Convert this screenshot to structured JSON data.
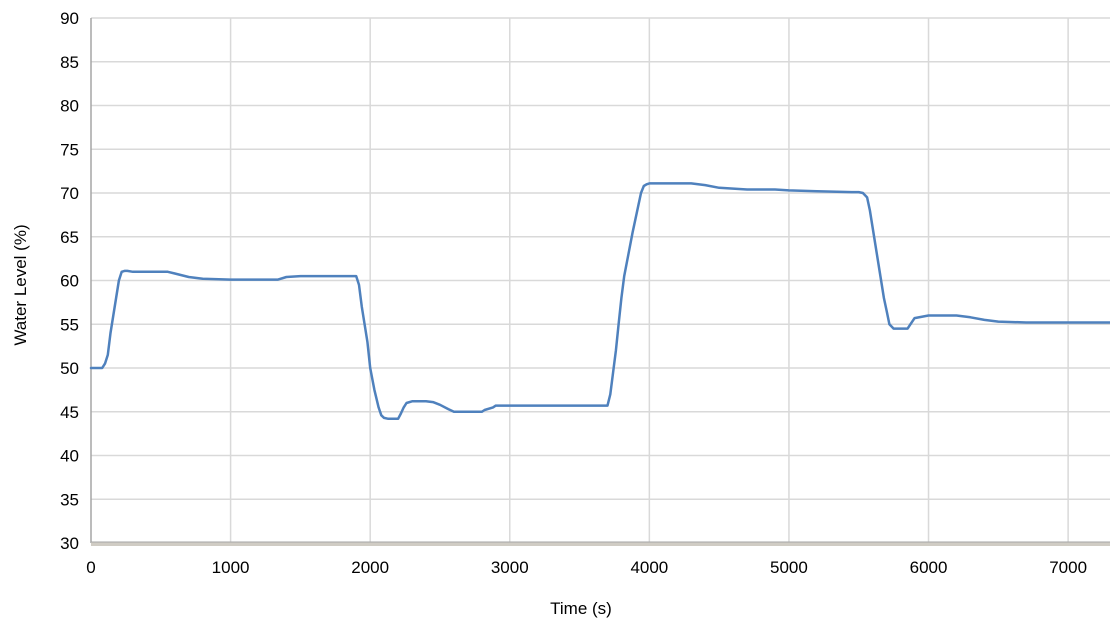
{
  "chart_data": {
    "type": "line",
    "title": "",
    "xlabel": "Time (s)",
    "ylabel": "Water Level (%)",
    "xlim": [
      0,
      7300
    ],
    "ylim": [
      30,
      90
    ],
    "x_ticks": [
      0,
      1000,
      2000,
      3000,
      4000,
      5000,
      6000,
      7000
    ],
    "y_ticks": [
      30,
      35,
      40,
      45,
      50,
      55,
      60,
      65,
      70,
      75,
      80,
      85,
      90
    ],
    "grid": true,
    "legend": "none",
    "colors": {
      "line": "#4f81bd",
      "grid": "#d9d9d9",
      "axis": "#a6a6a6"
    },
    "series": [
      {
        "x": [
          0,
          80,
          100,
          120,
          140,
          160,
          180,
          200,
          220,
          240,
          260,
          300,
          400,
          550,
          600,
          700,
          800,
          1000,
          1200,
          1340,
          1400,
          1500,
          1700,
          1900,
          1920,
          1940,
          1960,
          1980,
          2000,
          2030,
          2060,
          2080,
          2100,
          2130,
          2200,
          2220,
          2240,
          2260,
          2300,
          2400,
          2450,
          2500,
          2560,
          2600,
          2700,
          2800,
          2820,
          2880,
          2900,
          3000,
          3300,
          3600,
          3700,
          3720,
          3740,
          3760,
          3780,
          3800,
          3820,
          3850,
          3880,
          3900,
          3920,
          3940,
          3960,
          3980,
          4000,
          4020,
          4100,
          4300,
          4400,
          4500,
          4700,
          4900,
          5000,
          5200,
          5450,
          5500,
          5530,
          5560,
          5580,
          5600,
          5620,
          5640,
          5660,
          5680,
          5700,
          5720,
          5750,
          5800,
          5850,
          5870,
          5900,
          6000,
          6100,
          6200,
          6300,
          6400,
          6500,
          6700,
          7000,
          7300
        ],
        "y": [
          50,
          50,
          50.5,
          51.5,
          54,
          56,
          58,
          60,
          61,
          61.1,
          61.1,
          61,
          61,
          61,
          60.8,
          60.4,
          60.2,
          60.1,
          60.1,
          60.1,
          60.4,
          60.5,
          60.5,
          60.5,
          59.5,
          57,
          55,
          53,
          50,
          47.5,
          45.5,
          44.6,
          44.3,
          44.2,
          44.2,
          44.8,
          45.5,
          46,
          46.2,
          46.2,
          46.1,
          45.8,
          45.3,
          45,
          45,
          45,
          45.2,
          45.5,
          45.7,
          45.7,
          45.7,
          45.7,
          45.7,
          47,
          49.5,
          52,
          55,
          58,
          60.5,
          63,
          65.5,
          67,
          68.5,
          70,
          70.8,
          71,
          71.1,
          71.1,
          71.1,
          71.1,
          70.9,
          70.6,
          70.4,
          70.4,
          70.3,
          70.2,
          70.1,
          70.1,
          70,
          69.5,
          68,
          66,
          64,
          62,
          60,
          58,
          56.5,
          55,
          54.5,
          54.5,
          54.5,
          55,
          55.7,
          56,
          56,
          56,
          55.8,
          55.5,
          55.3,
          55.2,
          55.2,
          55.2
        ]
      }
    ]
  }
}
